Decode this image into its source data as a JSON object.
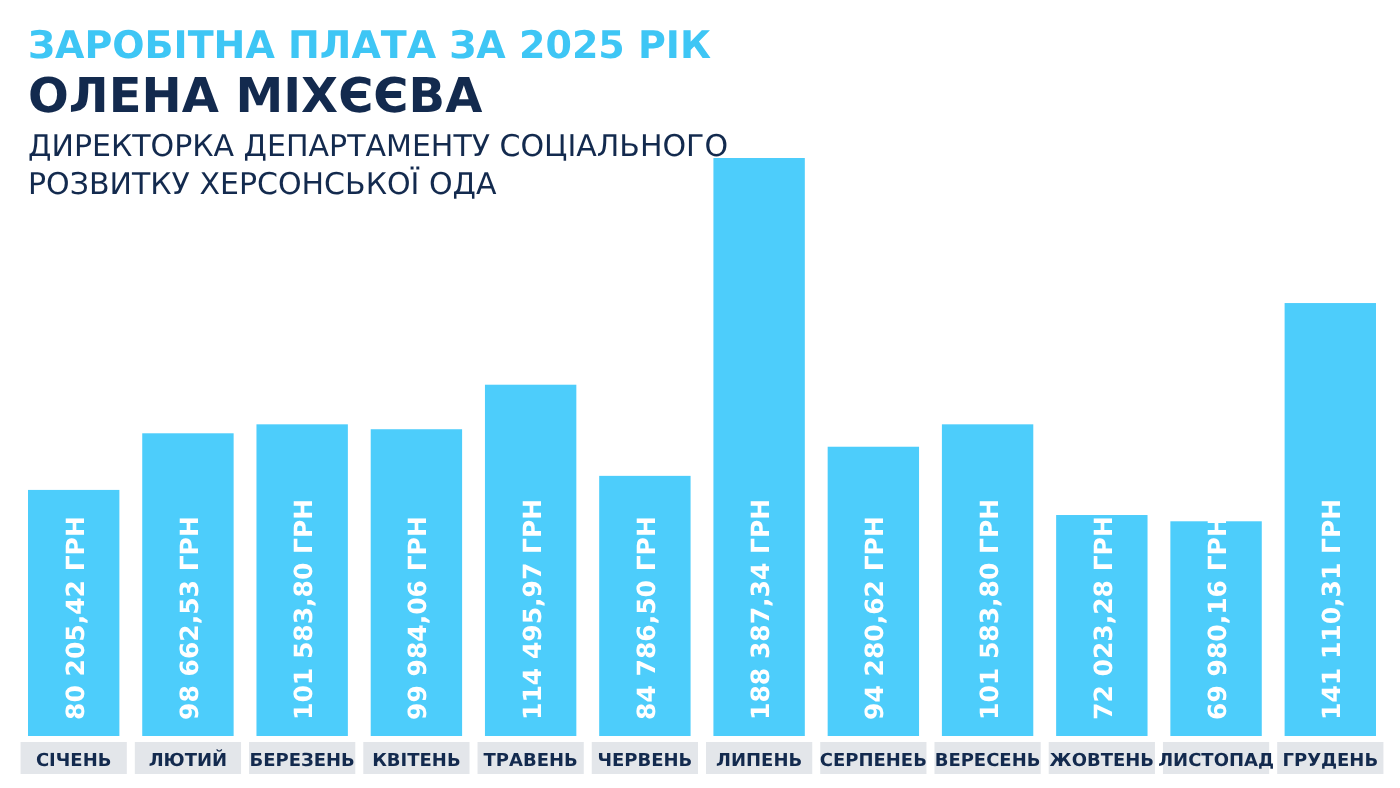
{
  "chart_data": {
    "type": "bar",
    "title": "ЗАРОБІТНА ПЛАТА ЗА 2025 РІК",
    "subtitle": "ОЛЕНА МІХЄЄВА",
    "annotations": [
      "ДИРЕКТОРКА ДЕПАРТАМЕНТУ СОЦІАЛЬНОГО\nРОЗВИТКУ ХЕРСОНСЬКОЇ ОДА"
    ],
    "categories": [
      "СІЧЕНЬ",
      "ЛЮТИЙ",
      "БЕРЕЗЕНЬ",
      "КВІТЕНЬ",
      "ТРАВЕНЬ",
      "ЧЕРВЕНЬ",
      "ЛИПЕНЬ",
      "СЕРПЕНЕЬ",
      "ВЕРЕСЕНЬ",
      "ЖОВТЕНЬ",
      "ЛИСТОПАД",
      "ГРУДЕНЬ"
    ],
    "values": [
      80205.42,
      98662.53,
      101583.8,
      99984.06,
      114495.97,
      84786.5,
      188387.34,
      94280.62,
      101583.8,
      72023.28,
      69980.16,
      141110.31
    ],
    "value_labels": [
      "80 205,42 ГРН",
      "98 662,53 ГРН",
      "101 583,80 ГРН",
      "99 984,06 ГРН",
      "114 495,97 ГРН",
      "84 786,50 ГРН",
      "188 387,34 ГРН",
      "94 280,62 ГРН",
      "101 583,80 ГРН",
      "72 023,28 ГРН",
      "69 980,16 ГРН",
      "141 110,31 ГРН"
    ],
    "color": "#4dcdfb"
  }
}
